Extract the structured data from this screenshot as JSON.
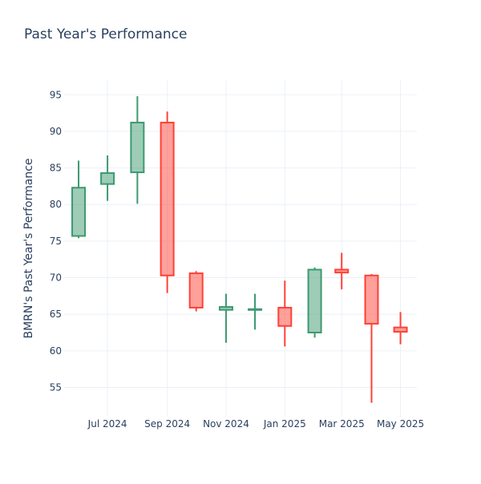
{
  "chart_data": {
    "type": "candlestick",
    "title": "Past Year's Performance",
    "ylabel": "BMRN's Past Year's Performance",
    "xlabel": "",
    "ylim": [
      51,
      97
    ],
    "yticks": [
      55,
      60,
      65,
      70,
      75,
      80,
      85,
      90,
      95
    ],
    "xtick_labels": [
      "Jul 2024",
      "Sep 2024",
      "Nov 2024",
      "Jan 2025",
      "Mar 2025",
      "May 2025"
    ],
    "xtick_dates": [
      "2024-07-01",
      "2024-09-01",
      "2024-11-01",
      "2025-01-01",
      "2025-03-01",
      "2025-05-01"
    ],
    "xlim": [
      "2024-05-17",
      "2025-05-18"
    ],
    "grid": true,
    "colors": {
      "increasing": "#3d9970",
      "decreasing": "#ff4136"
    },
    "candles": [
      {
        "date": "2024-06-01",
        "open": 75.7,
        "high": 86.0,
        "low": 75.4,
        "close": 82.3
      },
      {
        "date": "2024-07-01",
        "open": 82.8,
        "high": 86.7,
        "low": 80.5,
        "close": 84.3
      },
      {
        "date": "2024-08-01",
        "open": 84.4,
        "high": 94.8,
        "low": 80.1,
        "close": 91.2
      },
      {
        "date": "2024-09-01",
        "open": 91.2,
        "high": 92.7,
        "low": 67.9,
        "close": 70.3
      },
      {
        "date": "2024-10-01",
        "open": 70.6,
        "high": 70.9,
        "low": 65.4,
        "close": 65.9
      },
      {
        "date": "2024-11-01",
        "open": 65.6,
        "high": 67.8,
        "low": 61.1,
        "close": 66.0
      },
      {
        "date": "2024-12-01",
        "open": 65.6,
        "high": 67.8,
        "low": 62.9,
        "close": 65.7
      },
      {
        "date": "2025-01-01",
        "open": 65.9,
        "high": 69.6,
        "low": 60.6,
        "close": 63.4
      },
      {
        "date": "2025-02-01",
        "open": 62.5,
        "high": 71.4,
        "low": 61.8,
        "close": 71.1
      },
      {
        "date": "2025-03-01",
        "open": 71.1,
        "high": 73.4,
        "low": 68.4,
        "close": 70.7
      },
      {
        "date": "2025-04-01",
        "open": 70.3,
        "high": 70.5,
        "low": 52.9,
        "close": 63.7
      },
      {
        "date": "2025-05-01",
        "open": 63.2,
        "high": 65.3,
        "low": 60.9,
        "close": 62.6
      }
    ]
  }
}
